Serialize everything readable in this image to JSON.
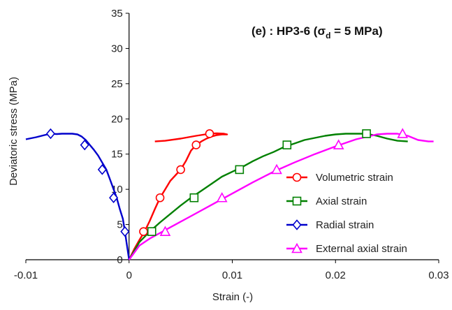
{
  "chart_data": {
    "type": "line",
    "title_prefix": "(e) : HP3-6 (",
    "title_sigma": "σ",
    "title_sub": "d",
    "title_suffix": " = 5 MPa)",
    "xlabel": "Strain (-)",
    "ylabel": "Deviatoric stress  (MPa)",
    "xlim": [
      -0.01,
      0.03
    ],
    "ylim": [
      0,
      35
    ],
    "xticks": [
      -0.01,
      0,
      0.01,
      0.02,
      0.03
    ],
    "xtick_labels": [
      "-0.01",
      "0",
      "0.01",
      "0.02",
      "0.03"
    ],
    "yticks": [
      0,
      5,
      10,
      15,
      20,
      25,
      30,
      35
    ],
    "ytick_labels": [
      "0",
      "5",
      "10",
      "15",
      "20",
      "25",
      "30",
      "35"
    ],
    "grid": false,
    "legend_position": "bottom-right",
    "series": [
      {
        "name": "Volumetric strain",
        "color": "#ff0000",
        "marker": "circle",
        "x": [
          0,
          0.0005,
          0.001,
          0.0015,
          0.002,
          0.0025,
          0.003,
          0.0035,
          0.004,
          0.0045,
          0.005,
          0.0055,
          0.006,
          0.0065,
          0.007,
          0.0075,
          0.008,
          0.0085,
          0.009,
          0.0095,
          0.0092,
          0.0085,
          0.0078,
          0.0065,
          0.005,
          0.0035,
          0.0025
        ],
        "y": [
          0,
          1.5,
          2.8,
          4.0,
          5.5,
          7.2,
          8.8,
          10.0,
          11.2,
          12.0,
          12.8,
          14.0,
          15.5,
          16.3,
          16.8,
          17.2,
          17.5,
          17.7,
          17.8,
          17.8,
          17.9,
          17.95,
          17.9,
          17.6,
          17.2,
          16.9,
          16.8
        ],
        "marker_x": [
          0.0014,
          0.003,
          0.005,
          0.0065,
          0.0078
        ],
        "marker_y": [
          4.0,
          8.8,
          12.8,
          16.3,
          17.9
        ]
      },
      {
        "name": "Axial strain",
        "color": "#008000",
        "marker": "square",
        "x": [
          0,
          0.001,
          0.002,
          0.003,
          0.004,
          0.005,
          0.006,
          0.007,
          0.008,
          0.009,
          0.01,
          0.011,
          0.012,
          0.013,
          0.014,
          0.015,
          0.016,
          0.017,
          0.018,
          0.019,
          0.02,
          0.021,
          0.022,
          0.023,
          0.024,
          0.025,
          0.026,
          0.027
        ],
        "y": [
          0,
          2.5,
          4.0,
          5.3,
          6.5,
          7.7,
          8.8,
          9.8,
          10.8,
          11.8,
          12.5,
          13.2,
          14.0,
          14.7,
          15.3,
          16.0,
          16.5,
          17.0,
          17.3,
          17.6,
          17.8,
          17.9,
          17.9,
          17.9,
          17.6,
          17.2,
          16.9,
          16.8
        ],
        "marker_x": [
          0.0022,
          0.0063,
          0.0107,
          0.0153,
          0.023
        ],
        "marker_y": [
          4.0,
          8.8,
          12.8,
          16.3,
          17.9
        ]
      },
      {
        "name": "Radial strain",
        "color": "#0000cc",
        "marker": "diamond",
        "x": [
          0,
          -0.0002,
          -0.0004,
          -0.0006,
          -0.0009,
          -0.0012,
          -0.0015,
          -0.0018,
          -0.0022,
          -0.0026,
          -0.003,
          -0.0034,
          -0.0038,
          -0.0042,
          -0.0046,
          -0.005,
          -0.0055,
          -0.006,
          -0.0065,
          -0.007,
          -0.0076,
          -0.0082,
          -0.009,
          -0.01
        ],
        "y": [
          0,
          2.0,
          4.0,
          5.8,
          7.2,
          8.8,
          10.0,
          11.2,
          12.8,
          13.8,
          14.8,
          15.6,
          16.3,
          17.0,
          17.5,
          17.8,
          17.9,
          17.9,
          17.9,
          17.85,
          17.9,
          17.7,
          17.4,
          17.1
        ],
        "marker_x": [
          -0.0004,
          -0.0015,
          -0.0026,
          -0.0043,
          -0.0076
        ],
        "marker_y": [
          4.0,
          8.8,
          12.8,
          16.3,
          17.9
        ]
      },
      {
        "name": "External axial strain",
        "color": "#ff00ff",
        "marker": "triangle",
        "x": [
          0,
          0.001,
          0.002,
          0.003,
          0.004,
          0.006,
          0.008,
          0.01,
          0.012,
          0.014,
          0.016,
          0.018,
          0.02,
          0.022,
          0.024,
          0.025,
          0.026,
          0.027,
          0.028,
          0.029,
          0.0295
        ],
        "y": [
          0,
          2.0,
          3.0,
          3.8,
          4.6,
          6.2,
          7.8,
          9.4,
          11.0,
          12.5,
          13.8,
          15.0,
          16.1,
          17.1,
          17.8,
          17.9,
          17.9,
          17.6,
          17.0,
          16.8,
          16.8
        ],
        "marker_x": [
          0.0035,
          0.009,
          0.0143,
          0.0203,
          0.0265
        ],
        "marker_y": [
          4.0,
          8.8,
          12.8,
          16.3,
          17.9
        ]
      }
    ]
  }
}
